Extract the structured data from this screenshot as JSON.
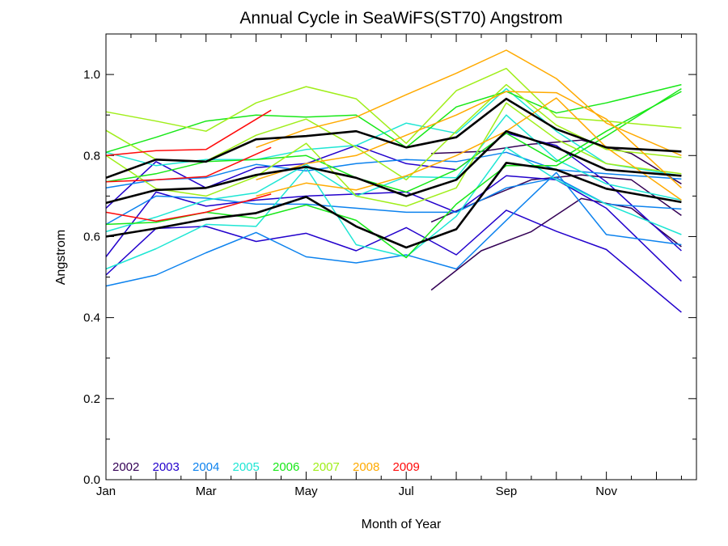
{
  "chart_data": {
    "type": "line",
    "title": "Annual Cycle in SeaWiFS(ST70) Angstrom",
    "xlabel": "Month of Year",
    "ylabel": "Angstrom",
    "xlim": [
      1,
      12.8
    ],
    "ylim": [
      0,
      1.1
    ],
    "x_ticks": [
      {
        "value": 1,
        "label": "Jan"
      },
      {
        "value": 3,
        "label": "Mar"
      },
      {
        "value": 5,
        "label": "May"
      },
      {
        "value": 7,
        "label": "Jul"
      },
      {
        "value": 9,
        "label": "Sep"
      },
      {
        "value": 11,
        "label": "Nov"
      }
    ],
    "y_ticks": [
      {
        "value": 0,
        "label": "0.0"
      },
      {
        "value": 0.2,
        "label": "0.2"
      },
      {
        "value": 0.4,
        "label": "0.4"
      },
      {
        "value": 0.6,
        "label": "0.6"
      },
      {
        "value": 0.8,
        "label": "0.8"
      },
      {
        "value": 1.0,
        "label": "1.0"
      }
    ],
    "x_minor_step": 0.5,
    "y_minor_step": 0.1,
    "legend": {
      "placement": "bottom-left",
      "entries": [
        {
          "label": "2002",
          "color": "#330055"
        },
        {
          "label": "2003",
          "color": "#2200cc"
        },
        {
          "label": "2004",
          "color": "#0c82ee"
        },
        {
          "label": "2005",
          "color": "#1ee6d4"
        },
        {
          "label": "2006",
          "color": "#18e818"
        },
        {
          "label": "2007",
          "color": "#a0ee1a"
        },
        {
          "label": "2008",
          "color": "#ffaa00"
        },
        {
          "label": "2009",
          "color": "#ff0a0a"
        }
      ]
    },
    "series": [
      {
        "color": "#330055",
        "x": [
          7.5,
          8.5,
          9.5,
          10.5,
          11.5,
          12.5
        ],
        "y": [
          0.805,
          0.81,
          0.828,
          0.838,
          0.805,
          0.73
        ]
      },
      {
        "color": "#330055",
        "x": [
          7.5,
          8.5,
          9.5,
          10.5,
          11.5,
          12.5
        ],
        "y": [
          0.636,
          0.69,
          0.74,
          0.752,
          0.74,
          0.652
        ]
      },
      {
        "color": "#330055",
        "x": [
          7.5,
          8.5,
          9.5,
          10.5,
          11.5,
          12.5
        ],
        "y": [
          0.468,
          0.565,
          0.612,
          0.694,
          0.67,
          0.575
        ]
      },
      {
        "color": "#2200cc",
        "x": [
          1,
          2,
          3,
          4,
          5,
          6,
          7,
          8,
          9,
          10,
          11,
          12.5
        ],
        "y": [
          0.67,
          0.785,
          0.72,
          0.77,
          0.78,
          0.825,
          0.78,
          0.765,
          0.855,
          0.825,
          0.735,
          0.565
        ]
      },
      {
        "color": "#2200cc",
        "x": [
          1,
          2,
          3,
          4,
          5,
          6,
          7,
          8,
          9,
          10,
          11,
          12.5
        ],
        "y": [
          0.55,
          0.71,
          0.675,
          0.69,
          0.7,
          0.705,
          0.71,
          0.66,
          0.75,
          0.74,
          0.67,
          0.49
        ]
      },
      {
        "color": "#2200cc",
        "x": [
          1,
          2,
          3,
          4,
          5,
          6,
          7,
          8,
          9,
          10,
          11,
          12.5
        ],
        "y": [
          0.505,
          0.62,
          0.625,
          0.588,
          0.608,
          0.565,
          0.622,
          0.555,
          0.665,
          0.613,
          0.568,
          0.413
        ]
      },
      {
        "color": "#0c82ee",
        "x": [
          1,
          2,
          3,
          4,
          5,
          6,
          7,
          8,
          9,
          10,
          11,
          12.5
        ],
        "y": [
          0.72,
          0.74,
          0.745,
          0.778,
          0.762,
          0.78,
          0.79,
          0.785,
          0.808,
          0.765,
          0.755,
          0.742
        ]
      },
      {
        "color": "#0c82ee",
        "x": [
          1,
          2,
          3,
          4,
          5,
          6,
          7,
          8,
          9,
          10,
          11,
          12.5
        ],
        "y": [
          0.63,
          0.7,
          0.695,
          0.68,
          0.68,
          0.67,
          0.66,
          0.66,
          0.72,
          0.745,
          0.68,
          0.668
        ]
      },
      {
        "color": "#0c82ee",
        "x": [
          1,
          2,
          3,
          4,
          5,
          6,
          7,
          8,
          9,
          10,
          11,
          12.5
        ],
        "y": [
          0.478,
          0.505,
          0.56,
          0.61,
          0.55,
          0.535,
          0.555,
          0.52,
          0.64,
          0.758,
          0.605,
          0.58
        ]
      },
      {
        "color": "#1ee6d4",
        "x": [
          1,
          2,
          3,
          4,
          5,
          6,
          7,
          8,
          9,
          10,
          11,
          12.5
        ],
        "y": [
          0.808,
          0.775,
          0.79,
          0.79,
          0.815,
          0.825,
          0.88,
          0.855,
          0.965,
          0.86,
          0.78,
          0.75
        ]
      },
      {
        "color": "#1ee6d4",
        "x": [
          1,
          2,
          3,
          4,
          5,
          6,
          7,
          8,
          9,
          10,
          11,
          12.5
        ],
        "y": [
          0.612,
          0.648,
          0.69,
          0.708,
          0.778,
          0.7,
          0.748,
          0.745,
          0.9,
          0.79,
          0.73,
          0.69
        ]
      },
      {
        "color": "#1ee6d4",
        "x": [
          1,
          2,
          3,
          4,
          5,
          6,
          7,
          8,
          9,
          10,
          11,
          12.5
        ],
        "y": [
          0.52,
          0.57,
          0.63,
          0.625,
          0.77,
          0.58,
          0.55,
          0.65,
          0.82,
          0.74,
          0.68,
          0.605
        ]
      },
      {
        "color": "#18e818",
        "x": [
          1,
          2,
          3,
          4,
          5,
          6,
          7,
          8,
          9,
          10,
          11,
          12.5
        ],
        "y": [
          0.808,
          0.845,
          0.885,
          0.9,
          0.895,
          0.9,
          0.82,
          0.92,
          0.958,
          0.905,
          0.93,
          0.975
        ]
      },
      {
        "color": "#18e818",
        "x": [
          1,
          2,
          3,
          4,
          5,
          6,
          7,
          8,
          9,
          10,
          11,
          12.5
        ],
        "y": [
          0.735,
          0.755,
          0.785,
          0.79,
          0.8,
          0.745,
          0.71,
          0.765,
          0.855,
          0.785,
          0.86,
          0.958
        ]
      },
      {
        "color": "#18e818",
        "x": [
          1,
          2,
          3,
          4,
          5,
          6,
          7,
          8,
          9,
          10,
          11,
          12.5
        ],
        "y": [
          0.63,
          0.635,
          0.66,
          0.645,
          0.678,
          0.64,
          0.548,
          0.68,
          0.775,
          0.775,
          0.848,
          0.965
        ]
      },
      {
        "color": "#a0ee1a",
        "x": [
          1,
          2,
          3,
          4,
          5,
          6,
          7,
          8,
          9,
          10,
          11,
          12.5
        ],
        "y": [
          0.908,
          0.885,
          0.86,
          0.93,
          0.97,
          0.94,
          0.83,
          0.96,
          1.015,
          0.895,
          0.885,
          0.868
        ]
      },
      {
        "color": "#a0ee1a",
        "x": [
          1,
          2,
          3,
          4,
          5,
          6,
          7,
          8,
          9,
          10,
          11,
          12.5
        ],
        "y": [
          0.862,
          0.79,
          0.786,
          0.85,
          0.89,
          0.82,
          0.74,
          0.86,
          0.975,
          0.875,
          0.815,
          0.795
        ]
      },
      {
        "color": "#a0ee1a",
        "x": [
          1,
          2,
          3,
          4,
          5,
          6,
          7,
          8,
          9,
          10,
          11,
          12.5
        ],
        "y": [
          0.8,
          0.718,
          0.7,
          0.748,
          0.83,
          0.7,
          0.675,
          0.72,
          0.93,
          0.84,
          0.78,
          0.755
        ]
      },
      {
        "color": "#ffaa00",
        "x": [
          4,
          5,
          6,
          7,
          8,
          9,
          10,
          11,
          12.5
        ],
        "y": [
          0.82,
          0.865,
          0.895,
          0.95,
          1.003,
          1.06,
          0.99,
          0.88,
          0.8
        ]
      },
      {
        "color": "#ffaa00",
        "x": [
          4,
          5,
          6,
          7,
          8,
          9,
          10,
          11,
          12.5
        ],
        "y": [
          0.74,
          0.78,
          0.8,
          0.85,
          0.9,
          0.958,
          0.955,
          0.89,
          0.72
        ]
      },
      {
        "color": "#ffaa00",
        "x": [
          4,
          5,
          6,
          7,
          8,
          9,
          10,
          11,
          12.5
        ],
        "y": [
          0.7,
          0.732,
          0.715,
          0.75,
          0.8,
          0.86,
          0.942,
          0.82,
          0.69
        ]
      },
      {
        "color": "#ff0a0a",
        "x": [
          1,
          2,
          3,
          4.3
        ],
        "y": [
          0.8,
          0.812,
          0.815,
          0.912
        ]
      },
      {
        "color": "#ff0a0a",
        "x": [
          1,
          2,
          3,
          4.3
        ],
        "y": [
          0.735,
          0.74,
          0.748,
          0.82
        ]
      },
      {
        "color": "#ff0a0a",
        "x": [
          1,
          2,
          3,
          4.3
        ],
        "y": [
          0.66,
          0.638,
          0.66,
          0.705
        ]
      },
      {
        "color": "#000000",
        "bold": true,
        "x": [
          1,
          2,
          3,
          4,
          5,
          6,
          7,
          8,
          9,
          10,
          11,
          12.5
        ],
        "y": [
          0.745,
          0.79,
          0.785,
          0.84,
          0.848,
          0.86,
          0.82,
          0.845,
          0.94,
          0.865,
          0.82,
          0.81
        ]
      },
      {
        "color": "#000000",
        "bold": true,
        "x": [
          1,
          2,
          3,
          4,
          5,
          6,
          7,
          8,
          9,
          10,
          11,
          12.5
        ],
        "y": [
          0.683,
          0.715,
          0.72,
          0.752,
          0.772,
          0.745,
          0.7,
          0.74,
          0.86,
          0.82,
          0.765,
          0.75
        ]
      },
      {
        "color": "#000000",
        "bold": true,
        "x": [
          1,
          2,
          3,
          4,
          5,
          6,
          7,
          8,
          9,
          10,
          11,
          12.5
        ],
        "y": [
          0.6,
          0.62,
          0.643,
          0.658,
          0.698,
          0.625,
          0.573,
          0.618,
          0.782,
          0.765,
          0.718,
          0.685
        ]
      }
    ]
  }
}
